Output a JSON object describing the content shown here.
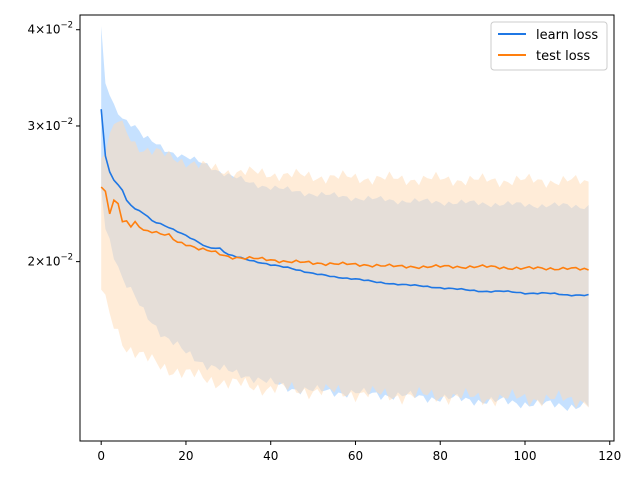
{
  "chart_data": {
    "type": "line",
    "title": "",
    "xlabel": "",
    "ylabel": "",
    "y_scale": "log",
    "xlim": [
      -5,
      121
    ],
    "ylim": [
      0.0117,
      0.0418
    ],
    "grid": false,
    "legend_position": "top-right",
    "x_ticks": [
      0,
      20,
      40,
      60,
      80,
      100,
      120
    ],
    "y_ticks": [
      {
        "value": 0.04,
        "mantissa": "4",
        "exponent": "−2"
      },
      {
        "value": 0.03,
        "mantissa": "3",
        "exponent": "−2"
      },
      {
        "value": 0.02,
        "mantissa": "2",
        "exponent": "−2"
      }
    ],
    "series": [
      {
        "name": "learn loss",
        "color": "#1f77e4",
        "band_color": "#bcdcff",
        "keypoints": [
          [
            0,
            0.0315
          ],
          [
            1,
            0.0274
          ],
          [
            2,
            0.0262
          ],
          [
            3,
            0.0255
          ],
          [
            4,
            0.0252
          ],
          [
            5,
            0.0248
          ],
          [
            6,
            0.024
          ],
          [
            8,
            0.0234
          ],
          [
            10,
            0.0231
          ],
          [
            12,
            0.0226
          ],
          [
            15,
            0.0223
          ],
          [
            20,
            0.0216
          ],
          [
            25,
            0.0209
          ],
          [
            28,
            0.0208
          ],
          [
            30,
            0.0204
          ],
          [
            35,
            0.0201
          ],
          [
            40,
            0.0198
          ],
          [
            45,
            0.0196
          ],
          [
            50,
            0.0193
          ],
          [
            55,
            0.0191
          ],
          [
            60,
            0.019
          ],
          [
            65,
            0.0188
          ],
          [
            70,
            0.0187
          ],
          [
            75,
            0.0186
          ],
          [
            80,
            0.0185
          ],
          [
            85,
            0.0184
          ],
          [
            90,
            0.0183
          ],
          [
            95,
            0.0183
          ],
          [
            100,
            0.0182
          ],
          [
            105,
            0.0182
          ],
          [
            110,
            0.0181
          ],
          [
            115,
            0.0181
          ]
        ],
        "band_upper": [
          [
            0,
            0.04
          ],
          [
            1,
            0.034
          ],
          [
            3,
            0.0318
          ],
          [
            5,
            0.0308
          ],
          [
            8,
            0.03
          ],
          [
            10,
            0.029
          ],
          [
            15,
            0.028
          ],
          [
            20,
            0.0273
          ],
          [
            25,
            0.0267
          ],
          [
            30,
            0.0259
          ],
          [
            35,
            0.0253
          ],
          [
            40,
            0.025
          ],
          [
            45,
            0.0247
          ],
          [
            50,
            0.0245
          ],
          [
            60,
            0.0242
          ],
          [
            70,
            0.024
          ],
          [
            80,
            0.0239
          ],
          [
            90,
            0.0238
          ],
          [
            100,
            0.0237
          ],
          [
            115,
            0.0236
          ]
        ],
        "band_lower": [
          [
            0,
            0.025
          ],
          [
            1,
            0.0222
          ],
          [
            3,
            0.0205
          ],
          [
            5,
            0.019
          ],
          [
            10,
            0.0172
          ],
          [
            15,
            0.016
          ],
          [
            20,
            0.0152
          ],
          [
            25,
            0.0147
          ],
          [
            30,
            0.0144
          ],
          [
            35,
            0.0142
          ],
          [
            40,
            0.0139
          ],
          [
            45,
            0.0137
          ],
          [
            50,
            0.0136
          ],
          [
            60,
            0.0135
          ],
          [
            70,
            0.0134
          ],
          [
            80,
            0.0133
          ],
          [
            90,
            0.0132
          ],
          [
            100,
            0.0131
          ],
          [
            110,
            0.013
          ],
          [
            115,
            0.013
          ]
        ]
      },
      {
        "name": "test loss",
        "color": "#ff7f0e",
        "band_color": "#ffdcb8",
        "keypoints": [
          [
            0,
            0.025
          ],
          [
            1,
            0.0248
          ],
          [
            2,
            0.023
          ],
          [
            3,
            0.024
          ],
          [
            4,
            0.0238
          ],
          [
            5,
            0.0224
          ],
          [
            6,
            0.0226
          ],
          [
            7,
            0.0222
          ],
          [
            8,
            0.0225
          ],
          [
            9,
            0.0223
          ],
          [
            10,
            0.022
          ],
          [
            12,
            0.0219
          ],
          [
            14,
            0.0217
          ],
          [
            16,
            0.0216
          ],
          [
            18,
            0.0212
          ],
          [
            20,
            0.0211
          ],
          [
            23,
            0.0208
          ],
          [
            26,
            0.0206
          ],
          [
            30,
            0.0203
          ],
          [
            35,
            0.0202
          ],
          [
            40,
            0.0201
          ],
          [
            45,
            0.02
          ],
          [
            50,
            0.0199
          ],
          [
            55,
            0.0199
          ],
          [
            60,
            0.0198
          ],
          [
            65,
            0.0198
          ],
          [
            70,
            0.0197
          ],
          [
            80,
            0.0197
          ],
          [
            90,
            0.0197
          ],
          [
            100,
            0.0196
          ],
          [
            110,
            0.0196
          ],
          [
            115,
            0.0195
          ]
        ],
        "band_upper": [
          [
            0,
            0.027
          ],
          [
            2,
            0.029
          ],
          [
            4,
            0.0305
          ],
          [
            6,
            0.0295
          ],
          [
            8,
            0.0285
          ],
          [
            10,
            0.028
          ],
          [
            15,
            0.0275
          ],
          [
            20,
            0.027
          ],
          [
            25,
            0.0265
          ],
          [
            30,
            0.0262
          ],
          [
            40,
            0.026
          ],
          [
            50,
            0.0258
          ],
          [
            60,
            0.0257
          ],
          [
            70,
            0.0256
          ],
          [
            80,
            0.0256
          ],
          [
            90,
            0.0255
          ],
          [
            100,
            0.0255
          ],
          [
            115,
            0.0254
          ]
        ],
        "band_lower": [
          [
            0,
            0.0185
          ],
          [
            2,
            0.017
          ],
          [
            4,
            0.0162
          ],
          [
            6,
            0.0155
          ],
          [
            10,
            0.015
          ],
          [
            15,
            0.0146
          ],
          [
            20,
            0.0143
          ],
          [
            30,
            0.0139
          ],
          [
            40,
            0.0137
          ],
          [
            50,
            0.0136
          ],
          [
            60,
            0.0135
          ],
          [
            70,
            0.0134
          ],
          [
            80,
            0.0134
          ],
          [
            90,
            0.0133
          ],
          [
            100,
            0.0133
          ],
          [
            115,
            0.0132
          ]
        ]
      }
    ]
  }
}
